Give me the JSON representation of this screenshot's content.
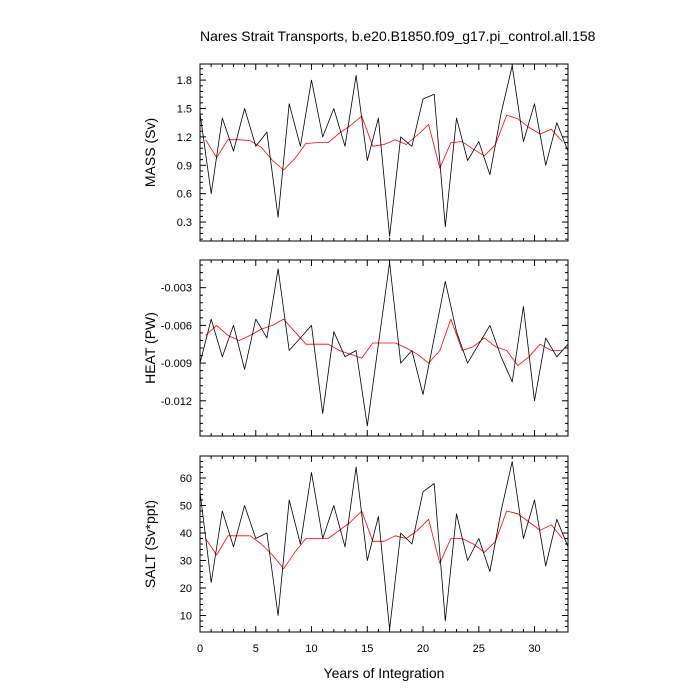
{
  "title": "Nares Strait Transports, b.e20.B1850.f09_g17.pi_control.all.158",
  "xlabel": "Years of Integration",
  "colors": {
    "monthly": "#000000",
    "annual": "#ff0000"
  },
  "chart_data": [
    {
      "type": "line",
      "panel": "mass",
      "ylabel": "MASS (Sv)",
      "ylim": [
        0.1,
        1.97
      ],
      "yticks": [
        "1.8",
        "1.5",
        "1.2",
        "0.9",
        "0.6",
        "0.3"
      ],
      "ytick_values": [
        1.8,
        1.5,
        1.2,
        0.9,
        0.6,
        0.3
      ],
      "xlim": [
        0,
        33
      ],
      "xticks": [
        "0",
        "5",
        "10",
        "15",
        "20",
        "25",
        "30"
      ],
      "series": [
        {
          "kind": "annual",
          "x": [
            0.5,
            1.5,
            2.5,
            3.5,
            4.5,
            5.5,
            6.5,
            7.5,
            8.5,
            9.5,
            10.5,
            11.5,
            12.5,
            13.5,
            14.5,
            15.5,
            16.5,
            17.5,
            18.5,
            19.5,
            20.5,
            21.5,
            22.5,
            23.5,
            24.5,
            25.5,
            26.5,
            27.5,
            28.5,
            29.5,
            30.5,
            31.5,
            32.5
          ],
          "values": [
            1.17,
            0.98,
            1.17,
            1.17,
            1.16,
            1.09,
            0.95,
            0.85,
            0.97,
            1.13,
            1.14,
            1.14,
            1.24,
            1.32,
            1.42,
            1.1,
            1.12,
            1.17,
            1.12,
            1.22,
            1.33,
            0.87,
            1.14,
            1.15,
            1.07,
            1.0,
            1.12,
            1.43,
            1.39,
            1.3,
            1.23,
            1.28,
            1.15
          ]
        },
        {
          "kind": "monthly",
          "x": [
            0,
            1,
            2,
            3,
            4,
            5,
            6,
            7,
            8,
            9,
            10,
            11,
            12,
            13,
            14,
            15,
            16,
            17,
            18,
            19,
            20,
            21,
            22,
            23,
            24,
            25,
            26,
            27,
            28,
            29,
            30,
            31,
            32,
            33
          ],
          "values": [
            1.45,
            0.6,
            1.4,
            1.05,
            1.5,
            1.1,
            1.25,
            0.35,
            1.55,
            1.1,
            1.8,
            1.2,
            1.5,
            1.1,
            1.85,
            0.95,
            1.4,
            0.15,
            1.2,
            1.1,
            1.6,
            1.65,
            0.25,
            1.4,
            0.95,
            1.15,
            0.8,
            1.45,
            1.95,
            1.15,
            1.55,
            0.9,
            1.35,
            1.05
          ]
        }
      ]
    },
    {
      "type": "line",
      "panel": "heat",
      "ylabel": "HEAT (PW)",
      "ylim": [
        -0.0148,
        -0.0008
      ],
      "yticks": [
        "-0.003",
        "-0.006",
        "-0.009",
        "-0.012"
      ],
      "ytick_values": [
        -0.003,
        -0.006,
        -0.009,
        -0.012
      ],
      "xlim": [
        0,
        33
      ],
      "xticks": [
        "0",
        "5",
        "10",
        "15",
        "20",
        "25",
        "30"
      ],
      "series": [
        {
          "kind": "annual",
          "x": [
            0.5,
            1.5,
            2.5,
            3.5,
            4.5,
            5.5,
            6.5,
            7.5,
            8.5,
            9.5,
            10.5,
            11.5,
            12.5,
            13.5,
            14.5,
            15.5,
            16.5,
            17.5,
            18.5,
            19.5,
            20.5,
            21.5,
            22.5,
            23.5,
            24.5,
            25.5,
            26.5,
            27.5,
            28.5,
            29.5,
            30.5,
            31.5,
            32.5
          ],
          "values": [
            -0.0068,
            -0.006,
            -0.0068,
            -0.0072,
            -0.0068,
            -0.0063,
            -0.006,
            -0.0055,
            -0.0065,
            -0.0075,
            -0.0075,
            -0.0075,
            -0.008,
            -0.0083,
            -0.0086,
            -0.0074,
            -0.0074,
            -0.0074,
            -0.0078,
            -0.0083,
            -0.009,
            -0.008,
            -0.0055,
            -0.008,
            -0.0077,
            -0.007,
            -0.0077,
            -0.008,
            -0.0092,
            -0.0085,
            -0.0075,
            -0.008,
            -0.008
          ]
        },
        {
          "kind": "monthly",
          "x": [
            0,
            1,
            2,
            3,
            4,
            5,
            6,
            7,
            8,
            9,
            10,
            11,
            12,
            13,
            14,
            15,
            16,
            17,
            18,
            19,
            20,
            21,
            22,
            23,
            24,
            25,
            26,
            27,
            28,
            29,
            30,
            31,
            32,
            33
          ],
          "values": [
            -0.009,
            -0.0055,
            -0.0085,
            -0.006,
            -0.0095,
            -0.0055,
            -0.007,
            -0.0015,
            -0.008,
            -0.007,
            -0.006,
            -0.013,
            -0.0065,
            -0.0085,
            -0.008,
            -0.014,
            -0.0075,
            -0.001,
            -0.009,
            -0.008,
            -0.0115,
            -0.007,
            -0.0025,
            -0.0065,
            -0.009,
            -0.0075,
            -0.006,
            -0.0085,
            -0.0105,
            -0.0045,
            -0.012,
            -0.007,
            -0.0085,
            -0.0075
          ]
        }
      ]
    },
    {
      "type": "line",
      "panel": "salt",
      "ylabel": "SALT (Sv*ppt)",
      "ylim": [
        4,
        68
      ],
      "yticks": [
        "60",
        "50",
        "40",
        "30",
        "20",
        "10"
      ],
      "ytick_values": [
        60,
        50,
        40,
        30,
        20,
        10
      ],
      "xlim": [
        0,
        33
      ],
      "xticks": [
        "0",
        "5",
        "10",
        "15",
        "20",
        "25",
        "30"
      ],
      "series": [
        {
          "kind": "annual",
          "x": [
            0.5,
            1.5,
            2.5,
            3.5,
            4.5,
            5.5,
            6.5,
            7.5,
            8.5,
            9.5,
            10.5,
            11.5,
            12.5,
            13.5,
            14.5,
            15.5,
            16.5,
            17.5,
            18.5,
            19.5,
            20.5,
            21.5,
            22.5,
            23.5,
            24.5,
            25.5,
            26.5,
            27.5,
            28.5,
            29.5,
            30.5,
            31.5,
            32.5
          ],
          "values": [
            38,
            32,
            39,
            39,
            39,
            36,
            32,
            27,
            33,
            38,
            38,
            38,
            41,
            44,
            48,
            37,
            37,
            39,
            38,
            41,
            45,
            29,
            38,
            38,
            36,
            33,
            37,
            48,
            47,
            44,
            41,
            43,
            38
          ]
        },
        {
          "kind": "monthly",
          "x": [
            0,
            1,
            2,
            3,
            4,
            5,
            6,
            7,
            8,
            9,
            10,
            11,
            12,
            13,
            14,
            15,
            16,
            17,
            18,
            19,
            20,
            21,
            22,
            23,
            24,
            25,
            26,
            27,
            28,
            29,
            30,
            31,
            32,
            33
          ],
          "values": [
            55,
            22,
            48,
            35,
            50,
            38,
            40,
            10,
            52,
            36,
            62,
            38,
            50,
            35,
            64,
            30,
            46,
            5,
            40,
            36,
            55,
            58,
            8,
            47,
            30,
            38,
            26,
            48,
            66,
            38,
            52,
            28,
            45,
            35
          ]
        }
      ]
    }
  ]
}
